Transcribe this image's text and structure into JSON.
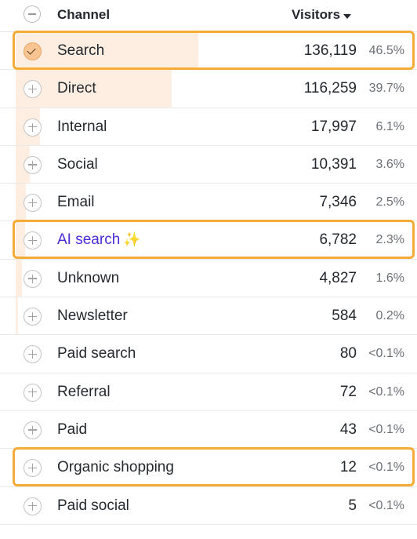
{
  "header": {
    "channel_label": "Channel",
    "visitors_label": "Visitors",
    "sort_icon": "caret-down-icon",
    "collapse_icon": "minus-circle-icon"
  },
  "colors": {
    "bar": "#fdeee1",
    "highlight": "#f5ac36",
    "ai_label": "#4b2bd8",
    "checked": "#f8c491"
  },
  "rows": [
    {
      "label": "Search",
      "value": "136,119",
      "pct": "46.5%",
      "share": 46.5,
      "checked": true
    },
    {
      "label": "Direct",
      "value": "116,259",
      "pct": "39.7%",
      "share": 39.7
    },
    {
      "label": "Internal",
      "value": "17,997",
      "pct": "6.1%",
      "share": 6.1
    },
    {
      "label": "Social",
      "value": "10,391",
      "pct": "3.6%",
      "share": 3.6
    },
    {
      "label": "Email",
      "value": "7,346",
      "pct": "2.5%",
      "share": 2.5
    },
    {
      "label": "AI search",
      "value": "6,782",
      "pct": "2.3%",
      "share": 2.3,
      "ai": true,
      "sparkle": "✨"
    },
    {
      "label": "Unknown",
      "value": "4,827",
      "pct": "1.6%",
      "share": 1.6
    },
    {
      "label": "Newsletter",
      "value": "584",
      "pct": "0.2%",
      "share": 0.2
    },
    {
      "label": "Paid search",
      "value": "80",
      "pct": "<0.1%",
      "share": 0
    },
    {
      "label": "Referral",
      "value": "72",
      "pct": "<0.1%",
      "share": 0
    },
    {
      "label": "Paid",
      "value": "43",
      "pct": "<0.1%",
      "share": 0
    },
    {
      "label": "Organic shopping",
      "value": "12",
      "pct": "<0.1%",
      "share": 0
    },
    {
      "label": "Paid social",
      "value": "5",
      "pct": "<0.1%",
      "share": 0
    }
  ],
  "highlighted_rows": [
    "Search",
    "AI search",
    "Organic shopping"
  ]
}
